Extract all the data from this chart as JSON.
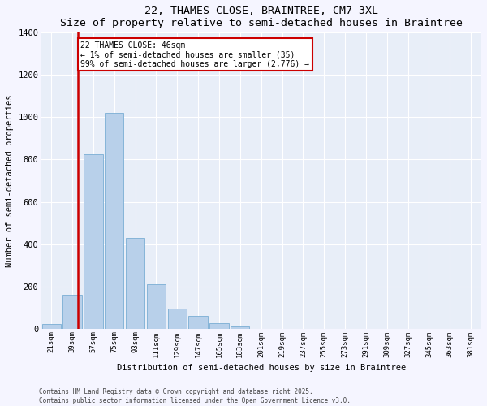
{
  "title": "22, THAMES CLOSE, BRAINTREE, CM7 3XL",
  "subtitle": "Size of property relative to semi-detached houses in Braintree",
  "xlabel": "Distribution of semi-detached houses by size in Braintree",
  "ylabel": "Number of semi-detached properties",
  "categories": [
    "21sqm",
    "39sqm",
    "57sqm",
    "75sqm",
    "93sqm",
    "111sqm",
    "129sqm",
    "147sqm",
    "165sqm",
    "183sqm",
    "201sqm",
    "219sqm",
    "237sqm",
    "255sqm",
    "273sqm",
    "291sqm",
    "309sqm",
    "327sqm",
    "345sqm",
    "363sqm",
    "381sqm"
  ],
  "values": [
    20,
    160,
    825,
    1020,
    430,
    210,
    95,
    60,
    25,
    10,
    0,
    0,
    0,
    0,
    0,
    0,
    0,
    0,
    0,
    0,
    0
  ],
  "bar_color": "#b8d0ea",
  "bar_edge_color": "#7aadd4",
  "background_color": "#e8eef8",
  "grid_color": "#ffffff",
  "vline_color": "#cc0000",
  "annotation_text": "22 THAMES CLOSE: 46sqm\n← 1% of semi-detached houses are smaller (35)\n99% of semi-detached houses are larger (2,776) →",
  "annotation_box_color": "#cc0000",
  "ylim": [
    0,
    1400
  ],
  "yticks": [
    0,
    200,
    400,
    600,
    800,
    1000,
    1200,
    1400
  ],
  "footer_line1": "Contains HM Land Registry data © Crown copyright and database right 2025.",
  "footer_line2": "Contains public sector information licensed under the Open Government Licence v3.0.",
  "fig_bg": "#f5f5ff"
}
